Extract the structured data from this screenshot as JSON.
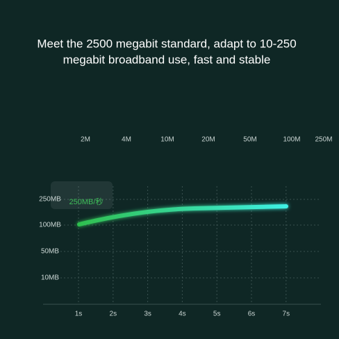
{
  "headline": {
    "lines": [
      "Meet the 2500 megabit standard, adapt to 10-250",
      "megabit broadband use, fast and stable"
    ]
  },
  "speed_scale": {
    "labels": [
      "2M",
      "4M",
      "10M",
      "20M",
      "50M",
      "100M",
      "250M"
    ]
  },
  "chart": {
    "badge": "250MB/秒",
    "y_labels": [
      "250MB",
      "100MB",
      "50MB",
      "10MB"
    ],
    "x_labels": [
      "1s",
      "2s",
      "3s",
      "4s",
      "5s",
      "6s",
      "7s"
    ]
  }
}
